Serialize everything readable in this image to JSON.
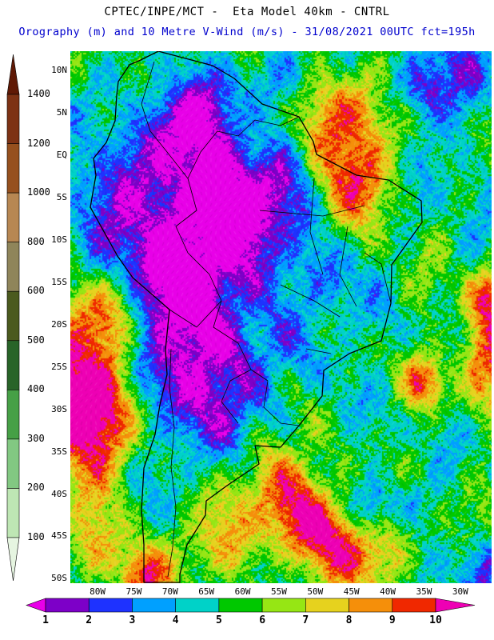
{
  "header": {
    "title": "CPTEC/INPE/MCT -  Eta Model 40km - CNTRL",
    "subtitle": "Orography (m) and 10 Metre V-Wind (m/s) - 31/08/2021 00UTC fct=195h"
  },
  "map": {
    "region": "South America",
    "lat_ticks": [
      "10N",
      "5N",
      "EQ",
      "5S",
      "10S",
      "15S",
      "20S",
      "25S",
      "30S",
      "35S",
      "40S",
      "45S",
      "50S"
    ],
    "lon_ticks": [
      "80W",
      "75W",
      "70W",
      "65W",
      "60W",
      "55W",
      "50W",
      "45W",
      "40W",
      "35W",
      "30W"
    ]
  },
  "orography_colorbar": {
    "units": "m",
    "tick_labels": [
      "1400",
      "1200",
      "1000",
      "800",
      "600",
      "500",
      "400",
      "300",
      "200",
      "100"
    ],
    "colors_top_to_bottom": [
      "#5f1905",
      "#7d3214",
      "#96501e",
      "#b78752",
      "#8f855a",
      "#4b5a1e",
      "#286428",
      "#46a046",
      "#82c882",
      "#bee6b4",
      "#e6f5e1"
    ]
  },
  "wind_colorbar": {
    "units": "m/s",
    "tick_labels": [
      "1",
      "2",
      "3",
      "4",
      "5",
      "6",
      "7",
      "8",
      "9",
      "10"
    ],
    "colors_left_to_right": [
      "#e800e8",
      "#7d00c8",
      "#1e32ff",
      "#00a0ff",
      "#00d2c8",
      "#00c800",
      "#96e614",
      "#e6d21e",
      "#f58f0a",
      "#f02800",
      "#ee00b4"
    ]
  },
  "chart_data": {
    "type": "heatmap",
    "title": "CPTEC/INPE/MCT -  Eta Model 40km - CNTRL",
    "subtitle": "Orography (m) and 10 Metre V-Wind (m/s) - 31/08/2021 00UTC fct=195h",
    "model": "Eta Model 40km",
    "experiment": "CNTRL",
    "valid_run": "31/08/2021 00UTC",
    "forecast_hour": "fct=195h",
    "variables": [
      "Orography (m)",
      "10 Metre V-Wind (m/s)"
    ],
    "lat_tick_range": [
      "10N",
      "50S"
    ],
    "lon_tick_range": [
      "80W",
      "30W"
    ],
    "orography_scale_m": [
      100,
      200,
      300,
      400,
      500,
      600,
      800,
      1000,
      1200,
      1400
    ],
    "wind_speed_scale_ms": [
      1,
      2,
      3,
      4,
      5,
      6,
      7,
      8,
      9,
      10
    ]
  }
}
